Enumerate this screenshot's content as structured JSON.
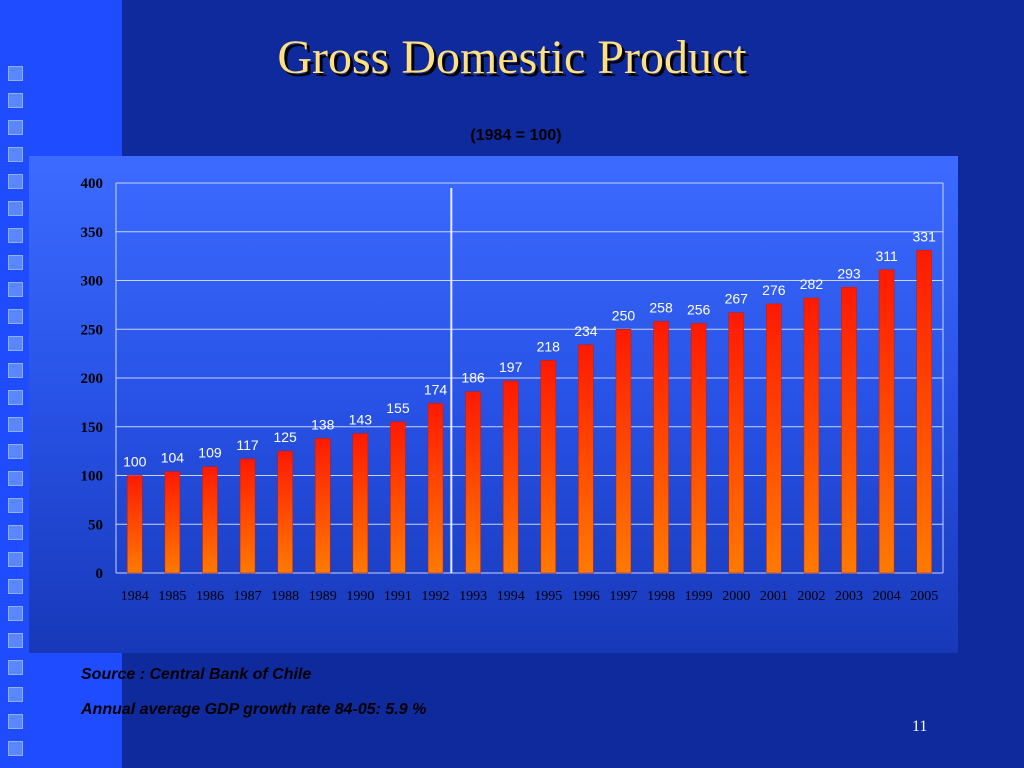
{
  "slide": {
    "title": "Gross Domestic Product",
    "subtitle": "(1984 = 100)",
    "source": "Source : Central Bank of Chile",
    "growth_note": "Annual average GDP growth rate 84-05:  5.9 %",
    "page_number": "11"
  },
  "colors": {
    "background": "#0e2a9c",
    "accent_strip": "#1f4cff",
    "title": "#ffe080",
    "bar_top": "#ff1a00",
    "bar_bottom": "#ff7a00"
  },
  "chart_data": {
    "type": "bar",
    "title": "",
    "xlabel": "",
    "ylabel": "",
    "ylim": [
      0,
      400
    ],
    "yticks": [
      0,
      50,
      100,
      150,
      200,
      250,
      300,
      350,
      400
    ],
    "grid": true,
    "categories": [
      "1984",
      "1985",
      "1986",
      "1987",
      "1988",
      "1989",
      "1990",
      "1991",
      "1992",
      "1993",
      "1994",
      "1995",
      "1996",
      "1997",
      "1998",
      "1999",
      "2000",
      "2001",
      "2002",
      "2003",
      "2004",
      "2005"
    ],
    "values": [
      100,
      104,
      109,
      117,
      125,
      138,
      143,
      155,
      174,
      186,
      197,
      218,
      234,
      250,
      258,
      256,
      267,
      276,
      282,
      293,
      311,
      331
    ],
    "data_labels": [
      "100",
      "104",
      "109",
      "117",
      "125",
      "138",
      "143",
      "155",
      "174",
      "186",
      "197",
      "218",
      "234",
      "250",
      "258",
      "256",
      "267",
      "276",
      "282",
      "293",
      "311",
      "331"
    ],
    "reference_line_at": "1993"
  }
}
